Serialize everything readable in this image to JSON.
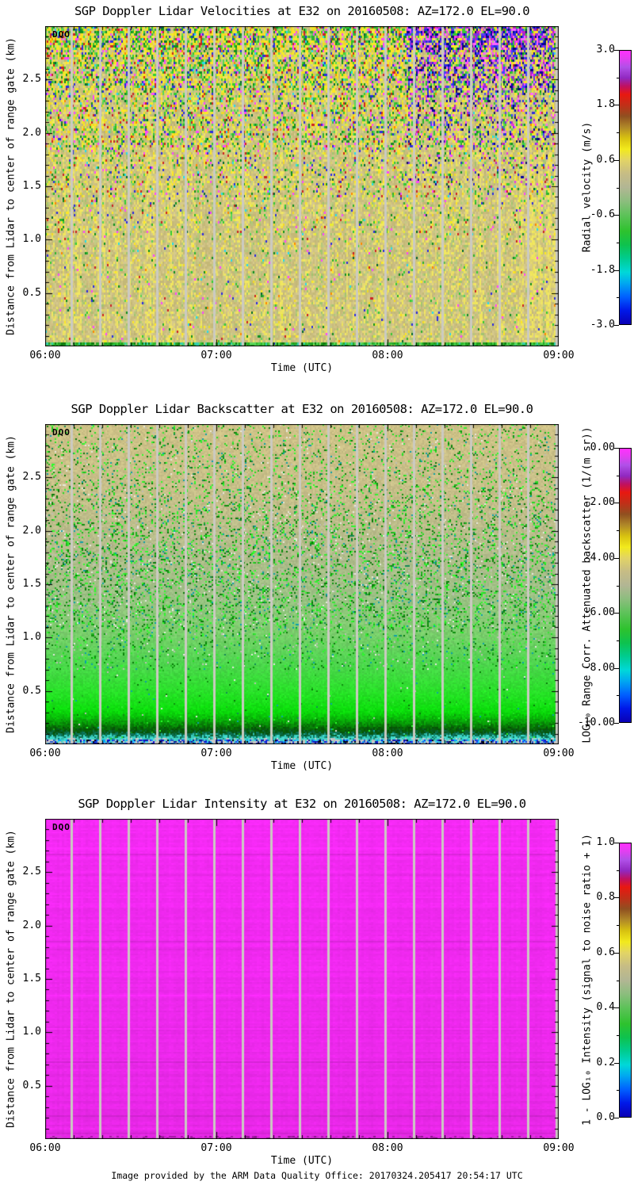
{
  "page": {
    "background": "#ffffff",
    "text_color": "#000000",
    "footer": "Image provided by the ARM Data Quality Office: 20170324.205417 20:54:17 UTC"
  },
  "shared": {
    "watermark": "DQO",
    "xlabel": "Time (UTC)",
    "ylabel": "Distance from Lidar to center of range gate (km)",
    "xticks": [
      "06:00",
      "07:00",
      "08:00",
      "09:00"
    ],
    "yticks": [
      "0.5",
      "1.0",
      "1.5",
      "2.0",
      "2.5"
    ],
    "gap_stripe_color": "#cbcac2",
    "palette_stops": [
      {
        "t": 0.0,
        "c": "#0a00b4"
      },
      {
        "t": 0.05,
        "c": "#0018e8"
      },
      {
        "t": 0.1,
        "c": "#0060ff"
      },
      {
        "t": 0.15,
        "c": "#00a8f0"
      },
      {
        "t": 0.19,
        "c": "#00d8d8"
      },
      {
        "t": 0.24,
        "c": "#00cc90"
      },
      {
        "t": 0.29,
        "c": "#0ec24e"
      },
      {
        "t": 0.34,
        "c": "#2ec22e"
      },
      {
        "t": 0.4,
        "c": "#5ec25a"
      },
      {
        "t": 0.45,
        "c": "#8cbd7e"
      },
      {
        "t": 0.5,
        "c": "#b2b694"
      },
      {
        "t": 0.55,
        "c": "#c6bc85"
      },
      {
        "t": 0.6,
        "c": "#e2d465"
      },
      {
        "t": 0.64,
        "c": "#f2ea1c"
      },
      {
        "t": 0.68,
        "c": "#d8c210"
      },
      {
        "t": 0.72,
        "c": "#b08828"
      },
      {
        "t": 0.76,
        "c": "#905020"
      },
      {
        "t": 0.8,
        "c": "#c03018"
      },
      {
        "t": 0.84,
        "c": "#e81810"
      },
      {
        "t": 0.87,
        "c": "#c01060"
      },
      {
        "t": 0.9,
        "c": "#9028c0"
      },
      {
        "t": 0.94,
        "c": "#b050e8"
      },
      {
        "t": 0.97,
        "c": "#e040f0"
      },
      {
        "t": 1.0,
        "c": "#ff30ff"
      }
    ]
  },
  "panels": [
    {
      "title": "SGP Doppler Lidar Velocities at E32 on 20160508: AZ=172.0 EL=90.0",
      "texture": "velocity",
      "colorbar": {
        "label": "Radial velocity (m/s)",
        "ticks": [
          "3.0",
          "1.8",
          "0.6",
          "-0.6",
          "-1.8",
          "-3.0"
        ]
      }
    },
    {
      "title": "SGP Doppler Lidar Backscatter at E32 on 20160508: AZ=172.0 EL=90.0",
      "texture": "backscatter",
      "colorbar": {
        "label": "LOG₁₀ Range Corr. Attenuated backscatter (1/(m sr))",
        "ticks": [
          "0.00",
          "-2.00",
          "-4.00",
          "-6.00",
          "-8.00",
          "-10.00"
        ]
      }
    },
    {
      "title": "SGP Doppler Lidar Intensity at E32 on 20160508: AZ=172.0 EL=90.0",
      "texture": "intensity",
      "colorbar": {
        "label": "1 - LOG₁₀ Intensity (signal to noise ratio + 1)",
        "ticks": [
          "1.0",
          "0.8",
          "0.6",
          "0.4",
          "0.2",
          "0.0"
        ]
      }
    }
  ],
  "chart_data": [
    {
      "type": "heatmap",
      "title": "SGP Doppler Lidar Velocities at E32 on 20160508: AZ=172.0 EL=90.0",
      "xlabel": "Time (UTC)",
      "ylabel": "Distance from Lidar to center of range gate (km)",
      "x_ticks": [
        "06:00",
        "07:00",
        "08:00",
        "09:00"
      ],
      "x_range": [
        "06:00",
        "09:00"
      ],
      "x_minor_tick_minutes": 10,
      "y_ticks_km": [
        0.5,
        1.0,
        1.5,
        2.0,
        2.5
      ],
      "y_range_km": [
        0.0,
        3.0
      ],
      "colorbar_label": "Radial velocity (m/s)",
      "colorbar_ticks": [
        3.0,
        1.8,
        0.6,
        -0.6,
        -1.8,
        -3.0
      ],
      "colorbar_range": [
        -3.0,
        3.0
      ],
      "palette": "rainbow: blue -3, cyan -2, green -1, gray/tan 0, yellow +0.6, brown/red +1.8, purple/magenta +3 m/s",
      "data_gap_stripes": {
        "first": "06:09",
        "interval_minutes": 10,
        "count": 18,
        "color": "light gray"
      },
      "watermark": "DQO",
      "features": [
        "Boundary layer below ~1.2 km: near-zero to slightly positive velocities (tan) with yellow updraft streaks (~+0.6 m/s)",
        "Yellow streaks strongest around 08:30-09:00 below 1.5 km",
        "Above ~1.5 km: random noisy speckle of all palette colors (weak signal)",
        "~08:05-08:50 above ~1.5 km: cluster of blue/magenta noisy returns",
        "Thin green band (~-1 m/s) at the lowest range gates along the bottom"
      ]
    },
    {
      "type": "heatmap",
      "title": "SGP Doppler Lidar Backscatter at E32 on 20160508: AZ=172.0 EL=90.0",
      "xlabel": "Time (UTC)",
      "ylabel": "Distance from Lidar to center of range gate (km)",
      "x_ticks": [
        "06:00",
        "07:00",
        "08:00",
        "09:00"
      ],
      "x_range": [
        "06:00",
        "09:00"
      ],
      "x_minor_tick_minutes": 10,
      "y_ticks_km": [
        0.5,
        1.0,
        1.5,
        2.0,
        2.5
      ],
      "y_range_km": [
        0.0,
        3.0
      ],
      "colorbar_label": "LOG₁₀ Range Corr. Attenuated backscatter (1/(m sr))",
      "colorbar_ticks": [
        0.0,
        -2.0,
        -4.0,
        -6.0,
        -8.0,
        -10.0
      ],
      "colorbar_range": [
        -10.0,
        0.0
      ],
      "data_gap_stripes": {
        "first": "06:09",
        "interval_minutes": 10,
        "count": 18,
        "color": "light gray"
      },
      "watermark": "DQO",
      "features": [
        "Smooth decrease of backscatter with height: ~-4.5 (tan) above 2 km, ~-5.5 (gray-green) 1-2 km, ~-6 (bright green) below 0.5 km",
        "Green speckle noise mainly between 1.0 and 2.2 km",
        "Dark green minimum (~-7) near 0.15 km",
        "Thin cyan band (~-8.5) just above the lowest gates",
        "Lowest gate row: blue speckle (~-9 to -10) on gray"
      ]
    },
    {
      "type": "heatmap",
      "title": "SGP Doppler Lidar Intensity at E32 on 20160508: AZ=172.0 EL=90.0",
      "xlabel": "Time (UTC)",
      "ylabel": "Distance from Lidar to center of range gate (km)",
      "x_ticks": [
        "06:00",
        "07:00",
        "08:00",
        "09:00"
      ],
      "x_range": [
        "06:00",
        "09:00"
      ],
      "x_minor_tick_minutes": 10,
      "y_ticks_km": [
        0.5,
        1.0,
        1.5,
        2.0,
        2.5
      ],
      "y_range_km": [
        0.0,
        3.0
      ],
      "colorbar_label": "1 - LOG₁₀ Intensity (signal to noise ratio + 1)",
      "colorbar_ticks": [
        1.0,
        0.8,
        0.6,
        0.4,
        0.2,
        0.0
      ],
      "colorbar_range": [
        0.0,
        1.0
      ],
      "data_gap_stripes": {
        "first": "06:09",
        "interval_minutes": 10,
        "count": 18,
        "color": "light gray"
      },
      "watermark": "DQO",
      "features": [
        "Nearly uniform magenta field: metric ~1.0 (signal-to-noise ratio near 0) at all heights and times",
        "Subtle horizontal banding, slightly darker magenta toward the lowest gates",
        "Thin darker speckled row at the very bottom",
        "Same vertical data-gap stripes every ~10 minutes as the other panels"
      ]
    }
  ]
}
